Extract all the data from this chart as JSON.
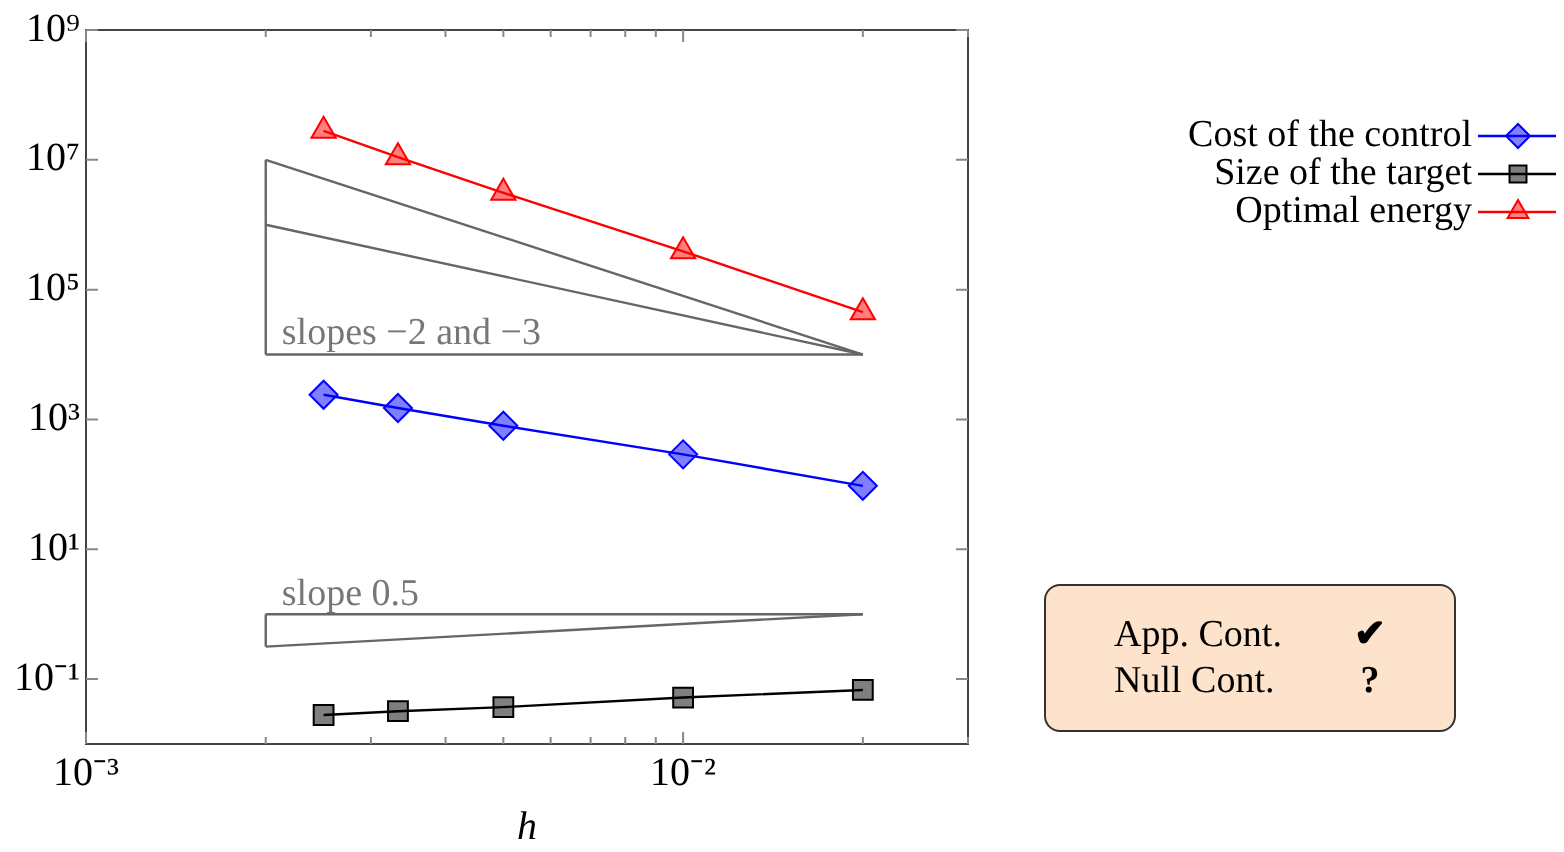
{
  "chart_data": {
    "type": "line",
    "xlabel": "h",
    "log": "xy",
    "grid": false,
    "legend": "top right",
    "xlim": [
      0.001,
      0.03
    ],
    "ylim": [
      0.01,
      1000000000
    ],
    "xticks": [
      {
        "value": 0.001,
        "label": "10⁻³"
      },
      {
        "value": 0.002,
        "label": null
      },
      {
        "value": 0.003,
        "label": null
      },
      {
        "value": 0.004,
        "label": null
      },
      {
        "value": 0.005,
        "label": null
      },
      {
        "value": 0.006,
        "label": null
      },
      {
        "value": 0.007,
        "label": null
      },
      {
        "value": 0.008,
        "label": null
      },
      {
        "value": 0.009,
        "label": null
      },
      {
        "value": 0.01,
        "label": "10⁻²"
      },
      {
        "value": 0.02,
        "label": null
      },
      {
        "value": 0.03,
        "label": null
      }
    ],
    "yticks": [
      {
        "value": 0.1,
        "label": "10⁻¹"
      },
      {
        "value": 10,
        "label": "10¹"
      },
      {
        "value": 1000,
        "label": "10³"
      },
      {
        "value": 100000,
        "label": "10⁵"
      },
      {
        "value": 10000000,
        "label": "10⁷"
      },
      {
        "value": 1000000000,
        "label": "10⁹"
      }
    ],
    "series": [
      {
        "name": "Cost of the control",
        "color": "#0000ff",
        "marker": "diamond",
        "x": [
          0.0025,
          0.00333,
          0.005,
          0.01,
          0.02
        ],
        "values": [
          2400,
          1500,
          800,
          290,
          95
        ]
      },
      {
        "name": "Size of the target",
        "color": "#000000",
        "marker": "square",
        "x": [
          0.0025,
          0.00333,
          0.005,
          0.01,
          0.02
        ],
        "values": [
          0.028,
          0.032,
          0.037,
          0.052,
          0.068
        ]
      },
      {
        "name": "Optimal energy",
        "color": "#ff0000",
        "marker": "triangle",
        "x": [
          0.0025,
          0.00333,
          0.005,
          0.01,
          0.02
        ],
        "values": [
          28000000,
          11000000,
          3100000,
          390000,
          45000
        ]
      },
      {
        "color": "#666666",
        "marker": "none",
        "x": [
          0.002,
          0.02
        ],
        "values": [
          10000000,
          10000
        ]
      },
      {
        "color": "#666666",
        "marker": "none",
        "x": [
          0.002,
          0.02
        ],
        "values": [
          1000000,
          10000
        ]
      },
      {
        "color": "#666666",
        "marker": "none",
        "x": [
          0.002,
          0.02
        ],
        "values": [
          10000,
          10000
        ]
      },
      {
        "color": "#666666",
        "marker": "none",
        "x": [
          0.002,
          0.002
        ],
        "values": [
          10000,
          10000000
        ]
      },
      {
        "color": "#666666",
        "marker": "none",
        "x": [
          0.002,
          0.02
        ],
        "values": [
          1,
          1
        ]
      },
      {
        "color": "#666666",
        "marker": "none",
        "x": [
          0.002,
          0.02
        ],
        "values": [
          0.316,
          1
        ]
      },
      {
        "color": "#666666",
        "marker": "none",
        "x": [
          0.002,
          0.002
        ],
        "values": [
          0.316,
          1
        ]
      }
    ],
    "annotations": [
      "slopes −2 and −3",
      "slope 0.5",
      "App. Cont.",
      "✔",
      "Null Cont.",
      "?"
    ]
  }
}
